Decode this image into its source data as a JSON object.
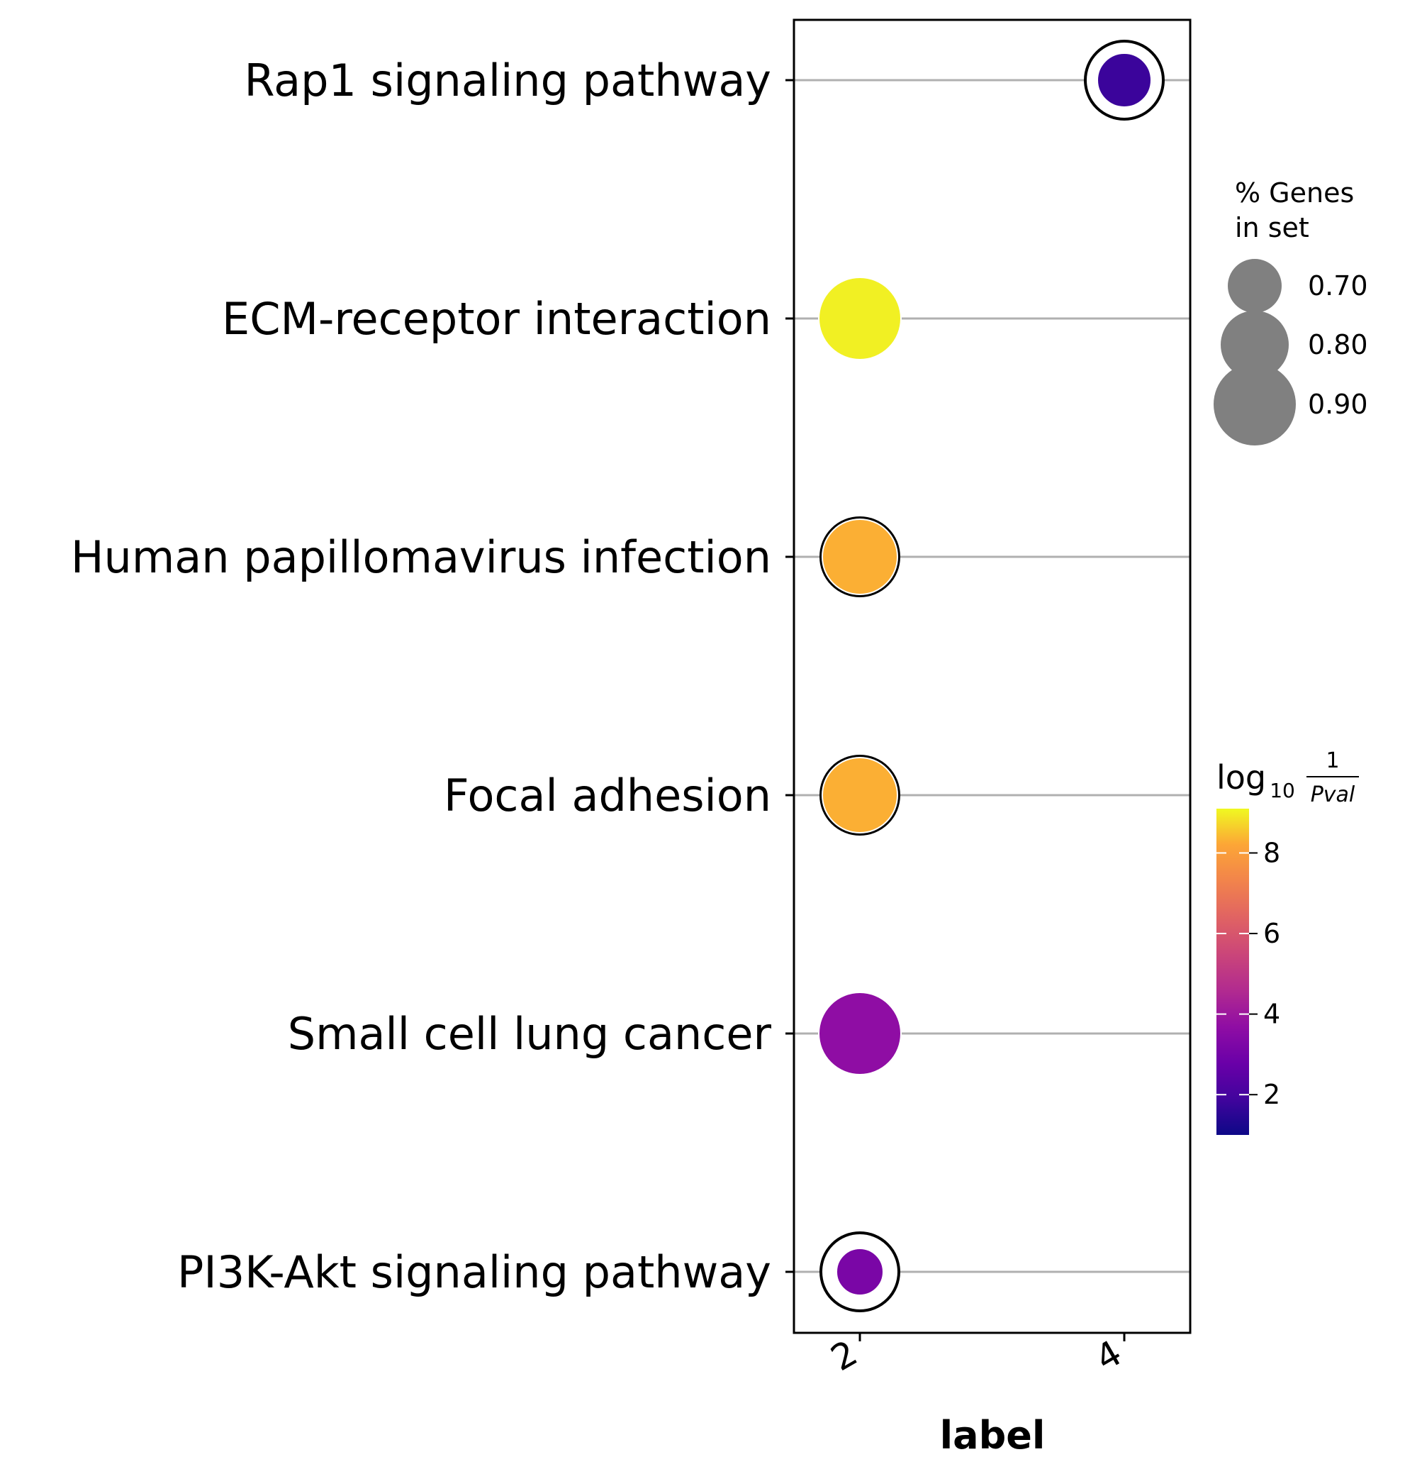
{
  "chart_data": {
    "type": "scatter",
    "subtype": "dot-plot",
    "title": "",
    "xlabel": "label",
    "ylabel": "",
    "x_ticks": [
      "2",
      "4"
    ],
    "categories": [
      "Rap1 signaling pathway",
      "ECM-receptor interaction",
      "Human papillomavirus infection",
      "Focal adhesion",
      "Small cell lung cancer",
      "PI3K-Akt signaling pathway"
    ],
    "points": [
      {
        "category": "Rap1 signaling pathway",
        "x": "4",
        "gene_pct": 0.7,
        "log10_inv_pval": 1.8
      },
      {
        "category": "ECM-receptor interaction",
        "x": "2",
        "gene_pct": 0.9,
        "log10_inv_pval": 9.0
      },
      {
        "category": "Human papillomavirus infection",
        "x": "2",
        "gene_pct": 0.85,
        "log10_inv_pval": 8.3
      },
      {
        "category": "Focal adhesion",
        "x": "2",
        "gene_pct": 0.85,
        "log10_inv_pval": 8.3
      },
      {
        "category": "Small cell lung cancer",
        "x": "2",
        "gene_pct": 0.9,
        "log10_inv_pval": 3.7
      },
      {
        "category": "PI3K-Akt signaling pathway",
        "x": "2",
        "gene_pct": 0.65,
        "log10_inv_pval": 3.2
      }
    ],
    "grid": "horizontal",
    "size_legend": {
      "title_lines": [
        "% Genes",
        "in set"
      ],
      "entries": [
        {
          "label": "0.70",
          "value": 0.7
        },
        {
          "label": "0.80",
          "value": 0.8
        },
        {
          "label": "0.90",
          "value": 0.9
        }
      ],
      "marker_color": "#808080"
    },
    "colorbar": {
      "title_main": "log",
      "title_sub": "10",
      "title_num": "1",
      "title_den": "Pval",
      "range": [
        1.0,
        9.1
      ],
      "ticks": [
        {
          "label": "2",
          "value": 2
        },
        {
          "label": "4",
          "value": 4
        },
        {
          "label": "6",
          "value": 6
        },
        {
          "label": "8",
          "value": 8
        }
      ],
      "colormap": "plasma"
    },
    "colors": {
      "grid": "#b0b0b0",
      "frame": "#000000",
      "marker_outline": "#ffffff",
      "marker_ring": "#000000"
    }
  }
}
